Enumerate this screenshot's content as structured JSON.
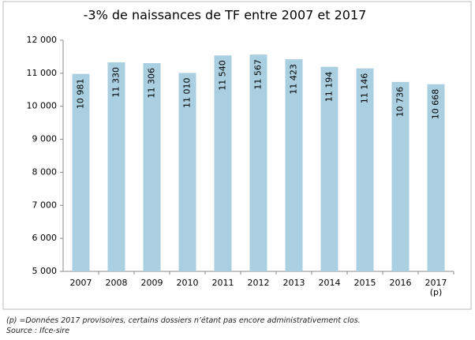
{
  "chart_data": {
    "type": "bar",
    "title": "-3% de naissances de TF entre 2007 et 2017",
    "categories": [
      "2007",
      "2008",
      "2009",
      "2010",
      "2011",
      "2012",
      "2013",
      "2014",
      "2015",
      "2016",
      "2017\n(p)"
    ],
    "values": [
      10981,
      11330,
      11306,
      11010,
      11540,
      11567,
      11423,
      11194,
      11146,
      10736,
      10668
    ],
    "value_labels": [
      "10 981",
      "11 330",
      "11 306",
      "11 010",
      "11 540",
      "11 567",
      "11 423",
      "11 194",
      "11 146",
      "10 736",
      "10 668"
    ],
    "color": "#a9cfe0",
    "ylim": [
      5000,
      12000
    ],
    "yticks": [
      {
        "value": 5000,
        "label": "5 000"
      },
      {
        "value": 6000,
        "label": "6 000"
      },
      {
        "value": 7000,
        "label": "7 000"
      },
      {
        "value": 8000,
        "label": "8 000"
      },
      {
        "value": 9000,
        "label": "9 000"
      },
      {
        "value": 10000,
        "label": "10 000"
      },
      {
        "value": 11000,
        "label": "11 000"
      },
      {
        "value": 12000,
        "label": "12 000"
      }
    ],
    "grid": false,
    "notes": [
      "(p) =Données 2017 provisoires, certains dossiers n’étant pas encore administrativement clos.",
      "Source : Ifce-sire"
    ]
  }
}
